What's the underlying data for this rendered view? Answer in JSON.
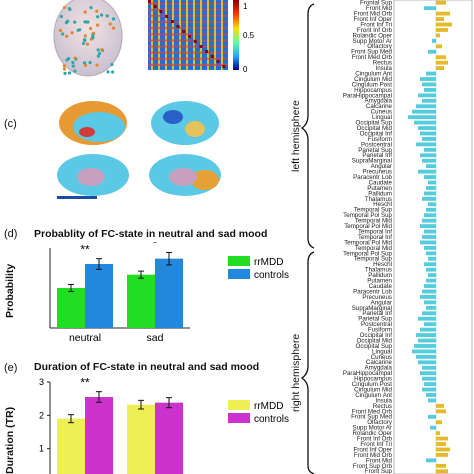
{
  "panel_c_letter": "(c)",
  "panel_d_letter": "(d)",
  "panel_e_letter": "(e)",
  "hemispheres": {
    "left": "left hemisphere",
    "right": "right hemisphere"
  },
  "colorbar_ticks": [
    "1",
    "0.5",
    "0"
  ],
  "colors": {
    "rrMDD_d": "#22dd22",
    "controls_d": "#2288dd",
    "rrMDD_e": "#eeee55",
    "controls_e": "#cc33cc",
    "region_bar_cyan": "#55ccdd",
    "region_bar_yellow": "#e6b92a"
  },
  "region_labels": [
    "Frontal Sup",
    "Front Mid",
    "Front Mid Orb",
    "Front Inf Oper",
    "Front Inf Tri",
    "Front Inf Orb",
    "Rolandic Oper",
    "Supp Motor Ar",
    "Olfactory",
    "Front Sup Med",
    "Front Med Orb",
    "Rectus",
    "Insula",
    "Cingulum Ant",
    "Cingulum Mid",
    "Cingulum Post",
    "Hippocampus",
    "ParaHippocampal",
    "Amygdala",
    "Calcarine",
    "Cuneus",
    "Lingual",
    "Occipital Sup",
    "Occipital Mid",
    "Occipital Inf",
    "Fusiform",
    "Postcentral",
    "Parietal Sup",
    "Parietal Inf",
    "SupraMarginal",
    "Angular",
    "Precuneus",
    "Paracentr Lob",
    "Caudate",
    "Putamen",
    "Pallidum",
    "Thalamus",
    "Heschl",
    "Temporal Sup",
    "Temporal Pol Sup",
    "Temporal Mid",
    "Temporal Pol Mid",
    "Temporal Inf",
    "Temporal Inf",
    "Temporal Pol Mid",
    "Temporal Mid",
    "Temporal Pol Sup",
    "Temporal Sup",
    "Heschl",
    "Thalamus",
    "Pallidum",
    "Putamen",
    "Caudate",
    "Paracentr Lob",
    "Precuneus",
    "Angular",
    "SupraMarginal",
    "Parietal Inf",
    "Parietal Sup",
    "Postcentral",
    "Fusiform",
    "Occipital Inf",
    "Occipital Mid",
    "Occipital Sup",
    "Lingual",
    "Cuneus",
    "Calcarine",
    "Amygdala",
    "ParaHippocampal",
    "Hippocampus",
    "Cingulum Post",
    "Cingulum Mid",
    "Cingulum Ant",
    "Insula",
    "Rectus",
    "Front Med Orb",
    "Front Sup Med",
    "Olfactory",
    "Supp Motor Ar",
    "Rolandic Oper",
    "Front Inf Orb",
    "Front Inf Tri",
    "Front Inf Oper",
    "Front Mid Orb",
    "Front Mid",
    "Front Sup Orb",
    "Front Sup"
  ],
  "chart_data": [
    {
      "type": "bar",
      "title": "Probablity of FC-state in neutral and sad mood",
      "ylabel": "Probability",
      "categories": [
        "neutral",
        "sad"
      ],
      "ylim": [
        0.0,
        0.09
      ],
      "ytick_labels": [],
      "series": [
        {
          "name": "rrMDD",
          "values": [
            0.045,
            0.06
          ],
          "errors": [
            0.004,
            0.004
          ]
        },
        {
          "name": "controls",
          "values": [
            0.072,
            0.078
          ],
          "errors": [
            0.006,
            0.007
          ]
        }
      ],
      "significance": [
        "**",
        "*"
      ],
      "legend": "right"
    },
    {
      "type": "bar",
      "title": "Duration of FC-state in neutral and sad mood",
      "ylabel": "Duration (TR)",
      "categories": [
        "",
        ""
      ],
      "ylim": [
        0.0,
        3.0
      ],
      "ytick_labels": [
        "3",
        "2",
        "1"
      ],
      "series": [
        {
          "name": "rrMDD",
          "values": [
            1.9,
            2.32
          ],
          "errors": [
            0.12,
            0.13
          ]
        },
        {
          "name": "controls",
          "values": [
            2.55,
            2.38
          ],
          "errors": [
            0.16,
            0.15
          ]
        }
      ],
      "significance": [
        "**",
        ""
      ],
      "legend": "right"
    },
    {
      "type": "bar",
      "title": "",
      "orientation": "horizontal",
      "categories_ref": "region_labels",
      "values": [
        0.25,
        -0.3,
        0.35,
        0.2,
        0.4,
        0.3,
        0.1,
        -0.1,
        0.15,
        -0.2,
        0.25,
        0.3,
        0.2,
        -0.25,
        -0.4,
        -0.35,
        -0.3,
        -0.45,
        -0.35,
        -0.5,
        -0.6,
        -0.7,
        -0.55,
        -0.45,
        -0.4,
        -0.35,
        -0.5,
        -0.3,
        -0.4,
        -0.35,
        -0.25,
        -0.45,
        -0.3,
        -0.2,
        -0.25,
        -0.3,
        -0.35,
        -0.2,
        -0.25,
        -0.3,
        -0.35,
        -0.4,
        -0.3,
        -0.35,
        -0.4,
        -0.3,
        -0.25,
        -0.2,
        -0.3,
        -0.25,
        -0.2,
        -0.25,
        -0.3,
        -0.35,
        -0.4,
        -0.3,
        -0.25,
        -0.35,
        -0.45,
        -0.3,
        -0.4,
        -0.5,
        -0.45,
        -0.55,
        -0.6,
        -0.5,
        -0.45,
        -0.35,
        -0.4,
        -0.35,
        -0.3,
        -0.35,
        -0.25,
        -0.2,
        0.2,
        0.25,
        -0.2,
        0.15,
        -0.15,
        0.1,
        0.3,
        0.25,
        0.35,
        0.3,
        -0.25,
        0.25,
        0.3
      ],
      "xlim": [
        -0.8,
        0.5
      ]
    }
  ]
}
